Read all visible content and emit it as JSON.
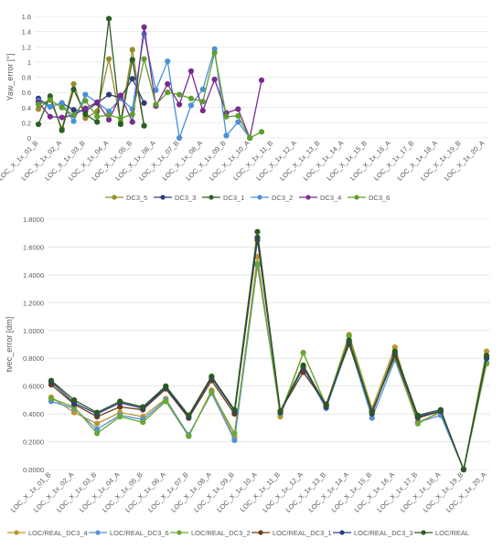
{
  "colors": {
    "DC3_5": "#9c8a2c",
    "DC3_3": "#2f3b7a",
    "DC3_1": "#2a5e22",
    "DC3_2": "#4a90d9",
    "DC3_4": "#7a2b8f",
    "DC3_6": "#5e9e2e",
    "LOC_REAL_DC3_4": "#b8962e",
    "LOC_REAL_DC3_6": "#5a8fd6",
    "LOC_REAL_DC3_2": "#6aa832",
    "LOC_REAL_DC3_1": "#6b3d1a",
    "LOC_REAL_DC3_3": "#2a3f8a",
    "LOC_REAL": "#2d5a1f",
    "grid": "#d9d9d9",
    "text": "#595959"
  },
  "chart_data": [
    {
      "type": "line",
      "title": "",
      "xlabel": "",
      "ylabel": "Yaw_error [°]",
      "ylim": [
        0,
        1.6
      ],
      "yticks": [
        0,
        0.2,
        0.4,
        0.6,
        0.8,
        1,
        1.2,
        1.4,
        1.6
      ],
      "grid": true,
      "legend": "bottom",
      "categories": [
        "LOC_X_1x_01_B",
        "",
        "LOC_X_1x_02_A",
        "",
        "LOC_X_1x_03_B",
        "",
        "LOC_X_1x_04_A",
        "",
        "LOC_X_1x_05_B",
        "",
        "LOC_X_1x_06_A",
        "",
        "LOC_X_1x_07_B",
        "",
        "LOC_X_1x_08_A",
        "",
        "LOC_X_1x_09_B",
        "",
        "LOC_X_1x_10_A",
        "",
        "LOC_X_1x_11_B",
        "",
        "LOC_X_1x_12_A",
        "",
        "LOC_X_1x_13_B",
        "",
        "LOC_X_1x_14_A",
        "",
        "LOC_X_1x_15_B",
        "",
        "LOC_X_1x_16_A",
        "",
        "LOC_X_1x_17_B",
        "",
        "LOC_X_1x_18_A",
        "",
        "LOC_X_1x_19_B",
        "",
        "LOC_X_1x_20_A"
      ],
      "series": [
        {
          "name": "DC3_5",
          "color": "DC3_5",
          "values": [
            0.38,
            0.51,
            0.12,
            0.71,
            0.26,
            0.35,
            1.04,
            0.21,
            1.16,
            0.16,
            null,
            null,
            null,
            null,
            null,
            null,
            null,
            null,
            null,
            null,
            null,
            null,
            null,
            null,
            null,
            null,
            null,
            null,
            null,
            null,
            null,
            null,
            null,
            null,
            null,
            null,
            null,
            null,
            null
          ]
        },
        {
          "name": "DC3_3",
          "color": "DC3_3",
          "values": [
            0.52,
            0.41,
            0.46,
            0.37,
            0.35,
            0.46,
            0.57,
            0.53,
            0.78,
            0.46,
            null,
            null,
            null,
            null,
            null,
            null,
            null,
            null,
            null,
            null,
            null,
            null,
            null,
            null,
            null,
            null,
            null,
            null,
            null,
            null,
            null,
            null,
            null,
            null,
            null,
            null,
            null,
            null,
            null
          ]
        },
        {
          "name": "DC3_1",
          "color": "DC3_1",
          "values": [
            0.18,
            0.55,
            0.1,
            0.64,
            0.31,
            0.21,
            1.57,
            0.18,
            1.03,
            0.16,
            null,
            null,
            null,
            null,
            null,
            null,
            null,
            null,
            null,
            null,
            null,
            null,
            null,
            null,
            null,
            null,
            null,
            null,
            null,
            null,
            null,
            null,
            null,
            null,
            null,
            null,
            null,
            null,
            null
          ]
        },
        {
          "name": "DC3_2",
          "color": "DC3_2",
          "values": [
            0.49,
            0.41,
            0.46,
            0.22,
            0.57,
            0.47,
            0.35,
            0.52,
            0.38,
            1.37,
            0.63,
            1.01,
            0.0,
            0.43,
            0.64,
            1.17,
            0.03,
            0.21,
            0.0,
            null,
            null,
            null,
            null,
            null,
            null,
            null,
            null,
            null,
            null,
            null,
            null,
            null,
            null,
            null,
            null,
            null,
            null,
            null,
            null
          ]
        },
        {
          "name": "DC3_4",
          "color": "DC3_4",
          "values": [
            0.47,
            0.28,
            0.27,
            0.3,
            0.39,
            0.47,
            0.24,
            0.56,
            0.21,
            1.46,
            0.42,
            0.71,
            0.44,
            0.88,
            0.36,
            0.77,
            0.33,
            0.38,
            0.0,
            0.76,
            null,
            null,
            null,
            null,
            null,
            null,
            null,
            null,
            null,
            null,
            null,
            null,
            null,
            null,
            null,
            null,
            null,
            null,
            null
          ]
        },
        {
          "name": "DC3_6",
          "color": "DC3_6",
          "values": [
            0.44,
            0.5,
            0.4,
            0.3,
            0.49,
            0.28,
            0.3,
            0.26,
            0.31,
            1.04,
            0.44,
            0.6,
            0.57,
            0.52,
            0.48,
            1.12,
            0.28,
            0.29,
            0.0,
            0.08,
            null,
            null,
            null,
            null,
            null,
            null,
            null,
            null,
            null,
            null,
            null,
            null,
            null,
            null,
            null,
            null,
            null,
            null,
            null
          ]
        }
      ]
    },
    {
      "type": "line",
      "title": "",
      "xlabel": "",
      "ylabel": "tvec_error [dm]",
      "ylim": [
        0,
        1.8
      ],
      "yticks": [
        "0.0000",
        "0.2000",
        "0.4000",
        "0.6000",
        "0.8000",
        "1.0000",
        "1.2000",
        "1.4000",
        "1.6000",
        "1.8000"
      ],
      "grid": true,
      "legend": "bottom",
      "categories": [
        "LOC_X_1x_01_B",
        "LOC_X_1x_02_A",
        "LOC_X_1x_03_B",
        "LOC_X_1x_04_A",
        "LOC_X_1x_05_B",
        "LOC_X_1x_06_A",
        "LOC_X_1x_07_B",
        "LOC_X_1x_08_A",
        "LOC_X_1x_09_B",
        "LOC_X_1x_10_A",
        "LOC_X_1x_11_B",
        "LOC_X_1x_12_A",
        "LOC_X_1x_13_B",
        "LOC_X_1x_14_A",
        "LOC_X_1x_15_B",
        "LOC_X_1x_16_A",
        "LOC_X_1x_17_B",
        "LOC_X_1x_18_A",
        "LOC_X_1x_19_B",
        "LOC_X_1x_20_A"
      ],
      "series": [
        {
          "name": "LOC/REAL_DC3_4",
          "color": "LOC_REAL_DC3_4",
          "values": [
            0.52,
            0.41,
            0.33,
            0.41,
            0.38,
            0.51,
            0.24,
            0.57,
            0.23,
            1.53,
            0.38,
            0.84,
            0.46,
            0.97,
            0.44,
            0.88,
            0.34,
            0.41,
            0.0,
            0.85
          ]
        },
        {
          "name": "LOC/REAL_DC3_6",
          "color": "LOC_REAL_DC3_6",
          "values": [
            0.49,
            0.44,
            0.29,
            0.39,
            0.36,
            0.5,
            0.25,
            0.55,
            0.21,
            1.47,
            0.42,
            0.73,
            0.44,
            0.91,
            0.37,
            0.79,
            0.34,
            0.39,
            0.0,
            0.77
          ]
        },
        {
          "name": "LOC/REAL_DC3_2",
          "color": "LOC_REAL_DC3_2",
          "values": [
            0.51,
            0.45,
            0.26,
            0.38,
            0.34,
            0.49,
            0.24,
            0.56,
            0.26,
            1.48,
            0.4,
            0.84,
            0.46,
            0.96,
            0.42,
            0.81,
            0.33,
            0.42,
            0.0,
            0.76
          ]
        },
        {
          "name": "LOC/REAL_DC3_1",
          "color": "LOC_REAL_DC3_1",
          "values": [
            0.61,
            0.47,
            0.38,
            0.45,
            0.43,
            0.58,
            0.37,
            0.64,
            0.4,
            1.65,
            0.42,
            0.7,
            0.47,
            0.9,
            0.42,
            0.82,
            0.37,
            0.42,
            0.0,
            0.81
          ]
        },
        {
          "name": "LOC/REAL_DC3_3",
          "color": "LOC_REAL_DC3_3",
          "values": [
            0.63,
            0.48,
            0.4,
            0.48,
            0.44,
            0.59,
            0.38,
            0.66,
            0.42,
            1.67,
            0.41,
            0.74,
            0.45,
            0.92,
            0.4,
            0.84,
            0.38,
            0.42,
            0.0,
            0.8
          ]
        },
        {
          "name": "LOC/REAL",
          "color": "LOC_REAL",
          "values": [
            0.64,
            0.5,
            0.41,
            0.49,
            0.45,
            0.6,
            0.39,
            0.67,
            0.43,
            1.71,
            0.42,
            0.75,
            0.46,
            0.93,
            0.41,
            0.85,
            0.39,
            0.43,
            0.0,
            0.82
          ]
        }
      ]
    }
  ]
}
